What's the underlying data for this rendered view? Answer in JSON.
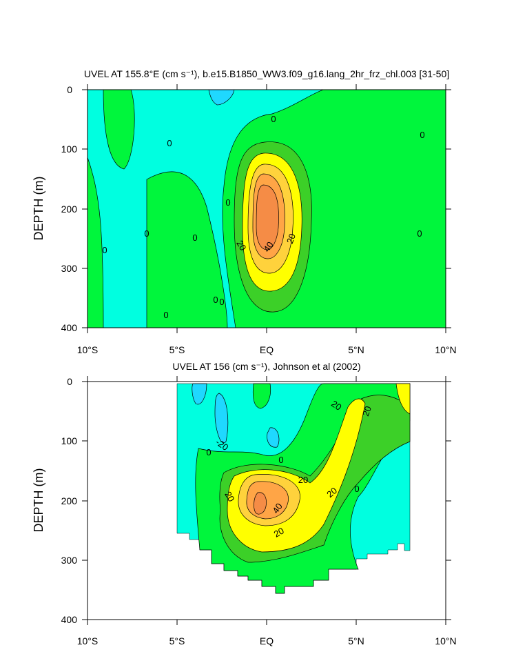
{
  "chart_data": [
    {
      "type": "heatmap",
      "title": "UVEL AT 155.8°E (cm s⁻¹), b.e15.B1850_WW3.f09_g16.lang_2hr_frz_chl.003 [31-50]",
      "xlabel": "",
      "ylabel": "DEPTH (m)",
      "xlim": [
        -10,
        10
      ],
      "ylim": [
        400,
        0
      ],
      "x_tick_labels": [
        "10°S",
        "5°S",
        "EQ",
        "5°N",
        "10°N"
      ],
      "y_tick_labels": [
        "0",
        "100",
        "200",
        "300",
        "400"
      ],
      "contour_levels": [
        -20,
        -10,
        0,
        10,
        20,
        30,
        40,
        50
      ],
      "contour_labels": [
        "0",
        "0",
        "0",
        "0",
        "0",
        "0",
        "0",
        "0",
        "0",
        "0",
        "0",
        "20",
        "40",
        "20"
      ],
      "features": [
        {
          "kind": "core maximum",
          "lat": -0.3,
          "depth": 205,
          "value": 50
        }
      ]
    },
    {
      "type": "heatmap",
      "title": "UVEL AT 156 (cm s⁻¹), Johnson et al (2002)",
      "xlabel": "",
      "ylabel": "DEPTH (m)",
      "xlim": [
        -10,
        10
      ],
      "ylim": [
        400,
        0
      ],
      "x_tick_labels": [
        "10°S",
        "5°S",
        "EQ",
        "5°N",
        "10°N"
      ],
      "y_tick_labels": [
        "0",
        "100",
        "200",
        "300",
        "400"
      ],
      "data_extent": {
        "lat": [
          -5,
          8
        ],
        "depth": [
          0,
          350
        ]
      },
      "contour_labels": [
        "-20",
        "0",
        "0",
        "0",
        "20",
        "20",
        "20",
        "20",
        "40",
        "20",
        "20"
      ],
      "features": [
        {
          "kind": "core maximum",
          "lat": -1.0,
          "depth": 200,
          "value": 50
        }
      ]
    }
  ],
  "colors": {
    "c_lt_m20": "#1fd8ff",
    "c_m20_m10": "#1fd8ff",
    "c_m10_0": "#00ffe0",
    "c_0_10": "#00f63c",
    "c_10_20": "#3cd028",
    "c_20_30": "#ffff00",
    "c_30_40": "#ffd23c",
    "c_40_50": "#ffa546",
    "c_gt_50": "#f58c46",
    "lines": "#000000"
  }
}
